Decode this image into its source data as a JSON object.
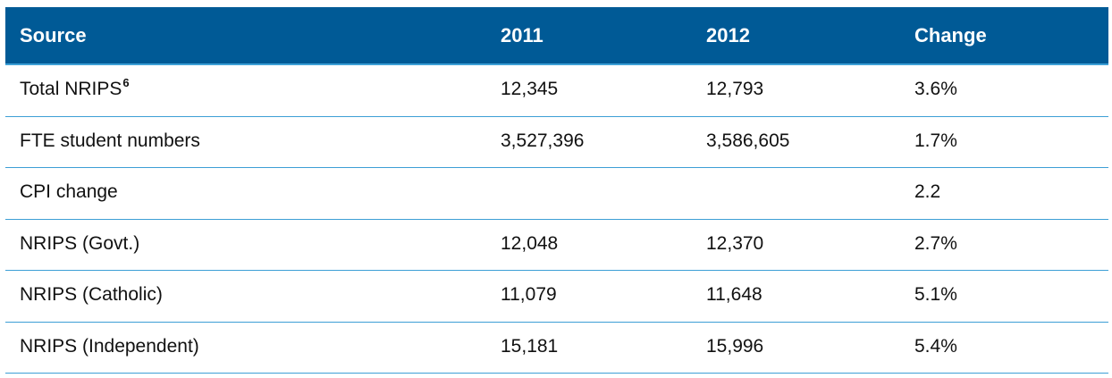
{
  "table": {
    "headers": [
      "Source",
      "2011",
      "2012",
      "Change"
    ],
    "rows": [
      {
        "source": "Total NRIPS",
        "footnote": "6",
        "y2011": "12,345",
        "y2012": "12,793",
        "change": "3.6%"
      },
      {
        "source": "FTE student numbers",
        "footnote": "",
        "y2011": "3,527,396",
        "y2012": "3,586,605",
        "change": "1.7%"
      },
      {
        "source": "CPI change",
        "footnote": "",
        "y2011": "",
        "y2012": "",
        "change": "2.2"
      },
      {
        "source": "NRIPS (Govt.)",
        "footnote": "",
        "y2011": "12,048",
        "y2012": "12,370",
        "change": "2.7%"
      },
      {
        "source": "NRIPS (Catholic)",
        "footnote": "",
        "y2011": "11,079",
        "y2012": "11,648",
        "change": "5.1%"
      },
      {
        "source": "NRIPS (Independent)",
        "footnote": "",
        "y2011": "15,181",
        "y2012": "15,996",
        "change": "5.4%"
      }
    ]
  },
  "colors": {
    "header_bg": "#005a96",
    "header_text": "#ffffff",
    "row_divider": "#3d9fd6"
  }
}
